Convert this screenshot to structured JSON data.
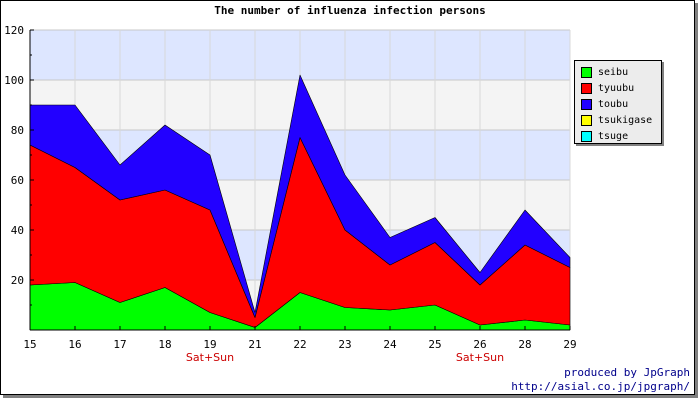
{
  "chart_data": {
    "type": "area",
    "stacked": true,
    "title": "The number of influenza infection persons",
    "categories": [
      "15",
      "16",
      "17",
      "18",
      "19",
      "21",
      "22",
      "23",
      "24",
      "25",
      "26",
      "28",
      "29"
    ],
    "sublabels": [
      "",
      "",
      "",
      "",
      "Sat+Sun",
      "",
      "",
      "",
      "",
      "",
      "Sat+Sun",
      "",
      ""
    ],
    "ylim": [
      0,
      120
    ],
    "yticks": [
      20,
      40,
      60,
      80,
      100,
      120
    ],
    "grid": true,
    "legend_position": "right",
    "series": [
      {
        "name": "seibu",
        "color": "#00ff00",
        "values": [
          18,
          19,
          11,
          17,
          7,
          1,
          15,
          9,
          8,
          10,
          2,
          4,
          2
        ]
      },
      {
        "name": "tyuubu",
        "color": "#ff0000",
        "values": [
          56,
          46,
          41,
          39,
          41,
          4,
          62,
          31,
          18,
          25,
          16,
          30,
          23
        ]
      },
      {
        "name": "toubu",
        "color": "#2200ff",
        "values": [
          16,
          25,
          14,
          26,
          22,
          2,
          25,
          22,
          11,
          10,
          5,
          14,
          4
        ]
      },
      {
        "name": "tsukigase",
        "color": "#ffff00",
        "values": [
          0,
          0,
          0,
          0,
          0,
          0,
          0,
          0,
          0,
          0,
          0,
          0,
          0
        ]
      },
      {
        "name": "tsuge",
        "color": "#00ffff",
        "values": [
          0,
          0,
          0,
          0,
          0,
          0,
          0,
          0,
          0,
          0,
          0,
          0,
          0
        ]
      }
    ],
    "band_colors": [
      "#dde6ff",
      "#f4f4f4"
    ],
    "sublabel_color": "#cc0000"
  },
  "credit": {
    "line1": "produced by JpGraph",
    "line2": "http://asial.co.jp/jpgraph/"
  }
}
